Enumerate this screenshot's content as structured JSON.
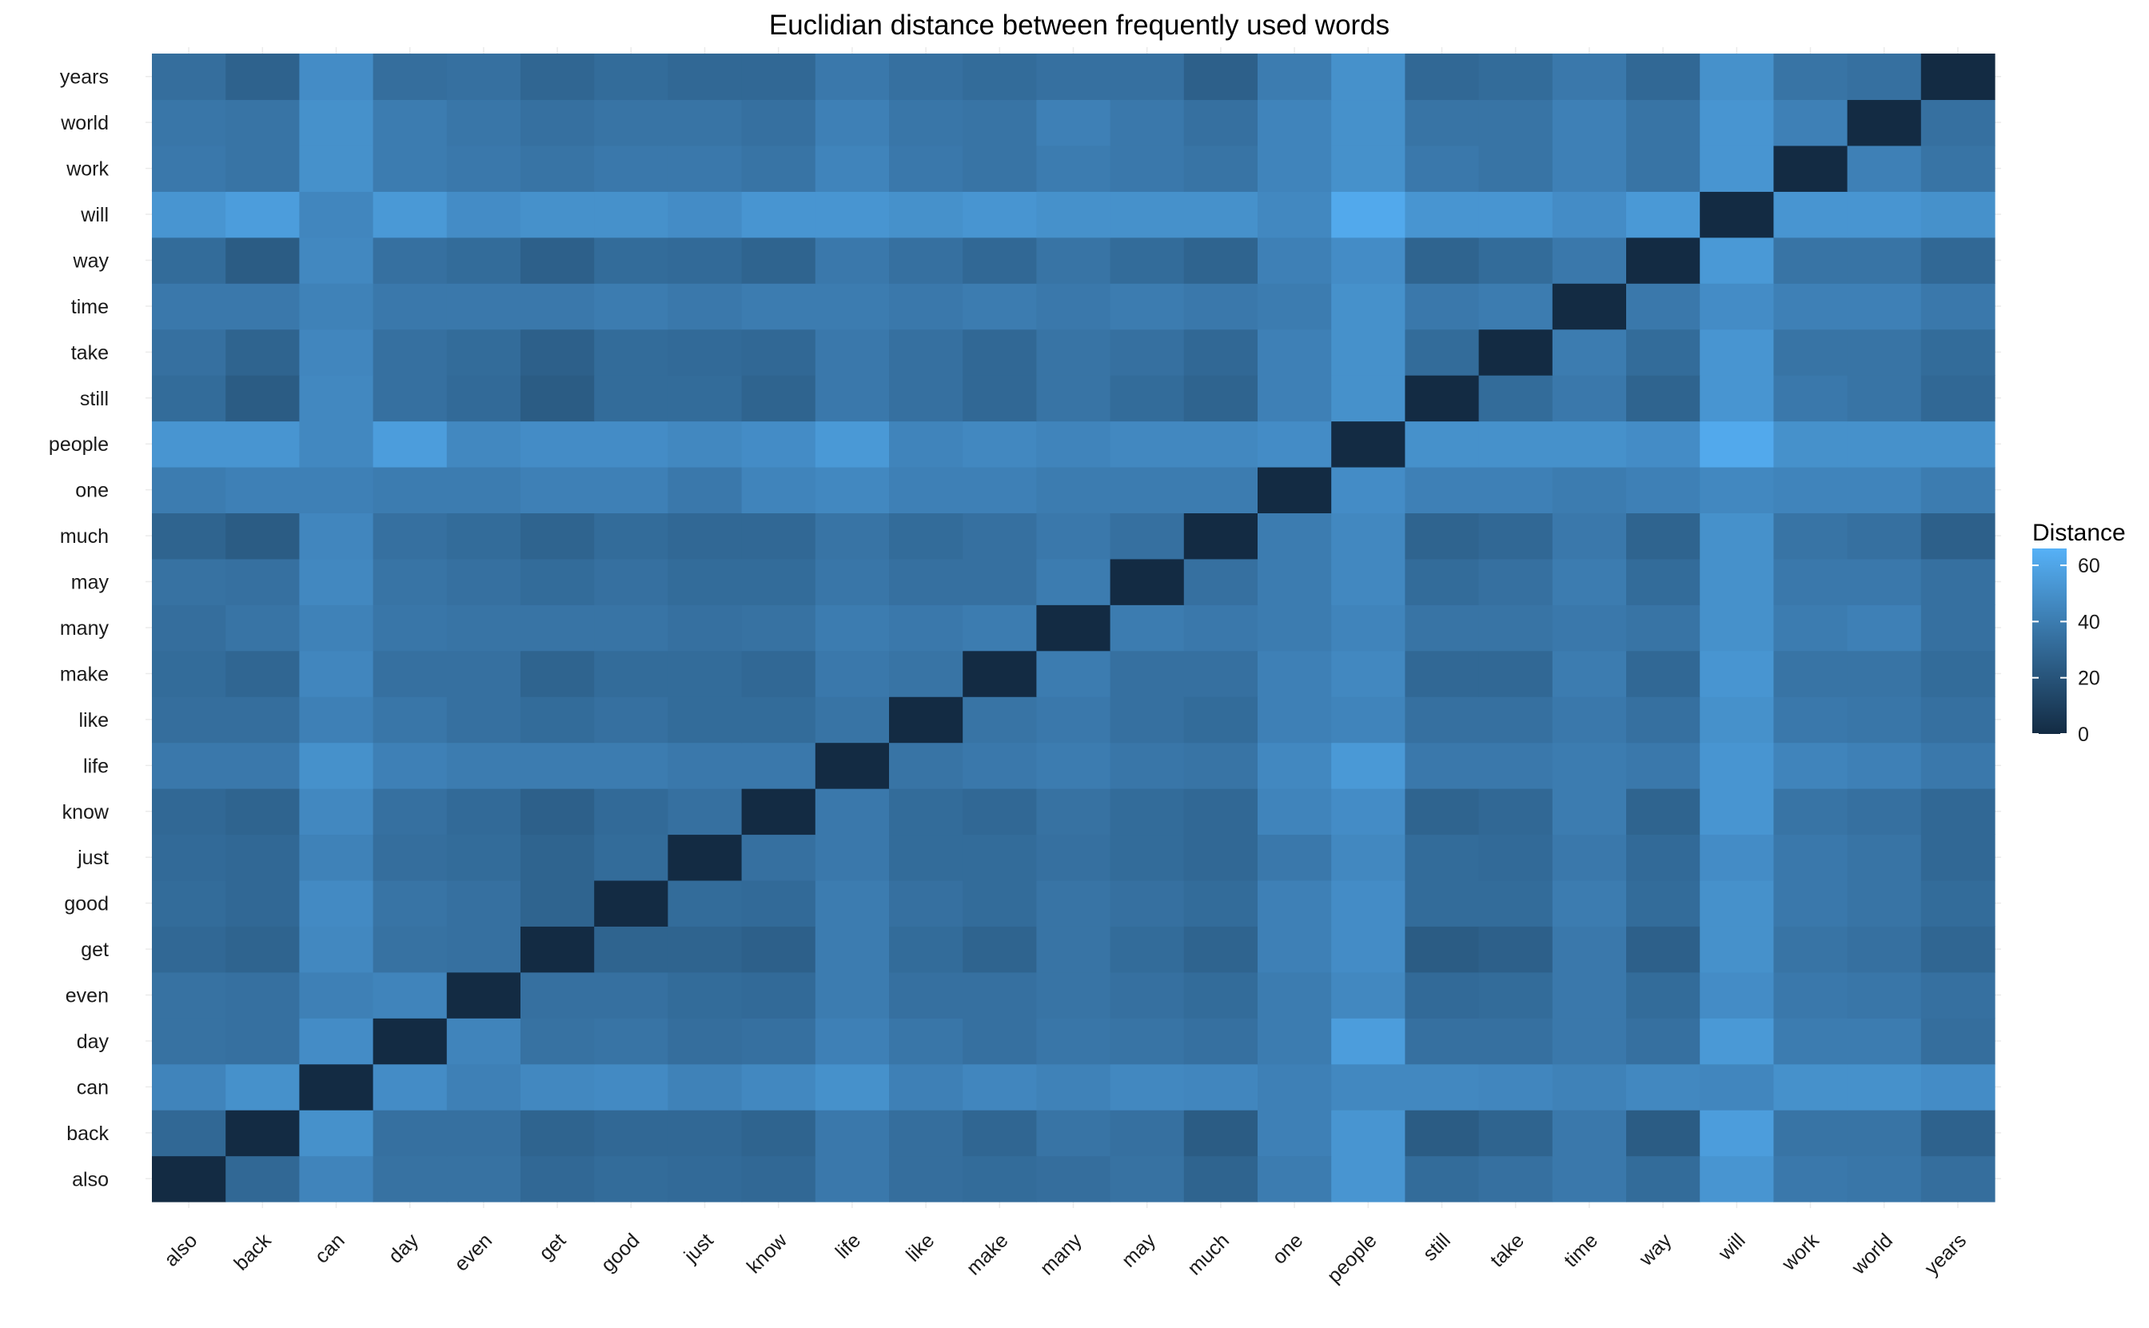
{
  "chart_data": {
    "type": "heatmap",
    "title": "Euclidian distance between frequently used words",
    "xlabel": "",
    "ylabel": "",
    "words": [
      "also",
      "back",
      "can",
      "day",
      "even",
      "get",
      "good",
      "just",
      "know",
      "life",
      "like",
      "make",
      "many",
      "may",
      "much",
      "one",
      "people",
      "still",
      "take",
      "time",
      "way",
      "will",
      "work",
      "world",
      "years"
    ],
    "matrix": [
      [
        0,
        30,
        44,
        35,
        35,
        30,
        32,
        31,
        30,
        38,
        33,
        32,
        33,
        35,
        28,
        40,
        52,
        32,
        34,
        38,
        32,
        52,
        38,
        37,
        33
      ],
      [
        30,
        0,
        50,
        34,
        34,
        28,
        30,
        30,
        28,
        38,
        33,
        29,
        36,
        34,
        24,
        42,
        52,
        24,
        28,
        38,
        24,
        56,
        36,
        36,
        27
      ],
      [
        44,
        50,
        0,
        48,
        42,
        46,
        47,
        43,
        46,
        50,
        42,
        45,
        43,
        46,
        45,
        42,
        46,
        46,
        45,
        43,
        46,
        45,
        50,
        50,
        48
      ],
      [
        35,
        34,
        48,
        0,
        44,
        35,
        36,
        33,
        34,
        42,
        37,
        34,
        37,
        36,
        34,
        40,
        56,
        34,
        34,
        38,
        34,
        54,
        40,
        40,
        33
      ],
      [
        35,
        34,
        42,
        44,
        0,
        34,
        34,
        32,
        31,
        40,
        34,
        34,
        36,
        34,
        32,
        40,
        46,
        31,
        32,
        38,
        32,
        48,
        38,
        37,
        34
      ],
      [
        30,
        28,
        46,
        35,
        34,
        0,
        28,
        28,
        26,
        40,
        32,
        28,
        36,
        32,
        28,
        42,
        48,
        24,
        26,
        38,
        26,
        50,
        36,
        34,
        29
      ],
      [
        32,
        30,
        47,
        36,
        34,
        28,
        0,
        32,
        31,
        40,
        34,
        32,
        36,
        34,
        32,
        42,
        48,
        32,
        32,
        40,
        32,
        50,
        38,
        36,
        32
      ],
      [
        31,
        30,
        43,
        33,
        32,
        28,
        32,
        0,
        34,
        38,
        32,
        32,
        34,
        32,
        30,
        38,
        46,
        32,
        31,
        38,
        31,
        48,
        38,
        36,
        30
      ],
      [
        30,
        28,
        46,
        34,
        31,
        26,
        31,
        34,
        0,
        38,
        32,
        30,
        35,
        32,
        30,
        44,
        48,
        28,
        30,
        40,
        28,
        52,
        36,
        34,
        30
      ],
      [
        38,
        38,
        50,
        42,
        40,
        40,
        40,
        38,
        38,
        0,
        36,
        38,
        40,
        37,
        36,
        46,
        54,
        38,
        38,
        40,
        38,
        52,
        44,
        42,
        38
      ],
      [
        33,
        33,
        42,
        37,
        34,
        32,
        34,
        32,
        32,
        36,
        0,
        36,
        38,
        34,
        32,
        42,
        44,
        34,
        34,
        38,
        34,
        50,
        38,
        37,
        34
      ],
      [
        32,
        29,
        45,
        34,
        34,
        28,
        32,
        32,
        30,
        38,
        36,
        0,
        40,
        34,
        34,
        42,
        46,
        30,
        30,
        40,
        30,
        52,
        36,
        36,
        32
      ],
      [
        33,
        36,
        43,
        37,
        36,
        36,
        36,
        34,
        35,
        40,
        38,
        40,
        0,
        40,
        38,
        40,
        44,
        36,
        36,
        38,
        36,
        50,
        40,
        42,
        34
      ],
      [
        35,
        34,
        46,
        36,
        34,
        32,
        34,
        32,
        32,
        37,
        34,
        34,
        40,
        0,
        34,
        40,
        46,
        32,
        34,
        40,
        32,
        50,
        38,
        38,
        34
      ],
      [
        28,
        24,
        45,
        34,
        32,
        28,
        32,
        30,
        30,
        36,
        32,
        34,
        38,
        34,
        0,
        40,
        46,
        28,
        30,
        38,
        28,
        50,
        36,
        34,
        26
      ],
      [
        40,
        42,
        42,
        40,
        40,
        42,
        42,
        38,
        44,
        46,
        42,
        42,
        40,
        40,
        40,
        0,
        48,
        42,
        42,
        40,
        42,
        46,
        44,
        44,
        40
      ],
      [
        52,
        52,
        46,
        56,
        46,
        48,
        48,
        46,
        48,
        54,
        44,
        46,
        44,
        46,
        46,
        48,
        0,
        50,
        50,
        50,
        48,
        62,
        50,
        50,
        50
      ],
      [
        32,
        24,
        46,
        34,
        31,
        24,
        32,
        32,
        28,
        38,
        34,
        30,
        36,
        32,
        28,
        42,
        50,
        0,
        32,
        38,
        28,
        52,
        38,
        36,
        30
      ],
      [
        34,
        28,
        45,
        34,
        32,
        26,
        32,
        31,
        30,
        38,
        34,
        30,
        36,
        34,
        30,
        42,
        50,
        32,
        0,
        40,
        32,
        52,
        36,
        36,
        32
      ],
      [
        38,
        38,
        43,
        38,
        38,
        38,
        40,
        38,
        40,
        40,
        38,
        40,
        38,
        40,
        38,
        40,
        50,
        38,
        40,
        0,
        38,
        48,
        42,
        42,
        38
      ],
      [
        32,
        24,
        46,
        34,
        32,
        26,
        32,
        31,
        28,
        38,
        34,
        30,
        36,
        32,
        28,
        42,
        48,
        28,
        32,
        38,
        0,
        54,
        36,
        36,
        30
      ],
      [
        52,
        56,
        45,
        54,
        48,
        50,
        50,
        48,
        52,
        52,
        50,
        52,
        50,
        50,
        50,
        46,
        62,
        52,
        52,
        48,
        54,
        0,
        52,
        52,
        50
      ],
      [
        38,
        36,
        50,
        40,
        38,
        36,
        38,
        38,
        36,
        44,
        38,
        36,
        40,
        38,
        36,
        44,
        50,
        38,
        36,
        42,
        36,
        52,
        0,
        42,
        36
      ],
      [
        37,
        36,
        50,
        40,
        37,
        34,
        36,
        36,
        34,
        42,
        37,
        36,
        42,
        38,
        34,
        44,
        50,
        36,
        36,
        42,
        36,
        52,
        42,
        0,
        34
      ],
      [
        33,
        27,
        48,
        33,
        34,
        29,
        32,
        30,
        30,
        38,
        34,
        32,
        34,
        34,
        26,
        40,
        50,
        30,
        32,
        38,
        30,
        50,
        36,
        34,
        0
      ]
    ],
    "color_scale": {
      "low": "#132B43",
      "high": "#56B1F7",
      "min": 0,
      "max": 66
    },
    "legend": {
      "title": "Distance",
      "ticks": [
        0,
        20,
        40,
        60
      ],
      "position": "right"
    },
    "grid": true
  }
}
